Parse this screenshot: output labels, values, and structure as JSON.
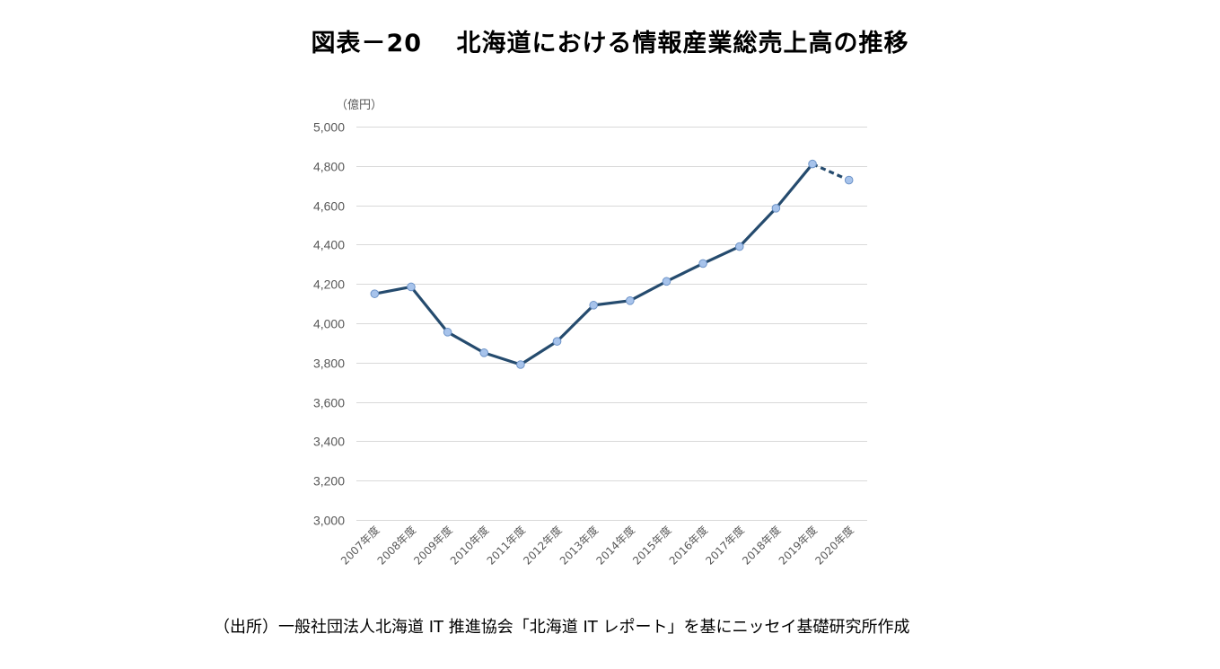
{
  "title": "図表－20　 北海道における情報産業総売上高の推移",
  "source": "（出所）一般社団法人北海道 IT 推進協会「北海道 IT レポート」を基にニッセイ基礎研究所作成",
  "colors": {
    "line": "#254B6E",
    "marker_fill": "#A7C3EB",
    "marker_stroke": "#6E94C8",
    "grid": "#D9D9D9",
    "text": "#595959"
  },
  "chart_data": {
    "type": "line",
    "unit_label": "（億円）",
    "categories": [
      "2007年度",
      "2008年度",
      "2009年度",
      "2010年度",
      "2011年度",
      "2012年度",
      "2013年度",
      "2014年度",
      "2015年度",
      "2016年度",
      "2017年度",
      "2018年度",
      "2019年度",
      "2020年度"
    ],
    "values": [
      4150,
      4185,
      3955,
      3850,
      3790,
      3908,
      4092,
      4115,
      4213,
      4304,
      4390,
      4585,
      4810,
      4728
    ],
    "dashed_from_index": 12,
    "ylim": [
      3000,
      5000
    ],
    "yticks": [
      5000,
      4800,
      4600,
      4400,
      4200,
      4000,
      3800,
      3600,
      3400,
      3200,
      3000
    ],
    "ytick_labels": [
      "5,000",
      "4,800",
      "4,600",
      "4,400",
      "4,200",
      "4,000",
      "3,800",
      "3,600",
      "3,400",
      "3,200",
      "3,000"
    ],
    "grid": true,
    "legend": "none"
  }
}
